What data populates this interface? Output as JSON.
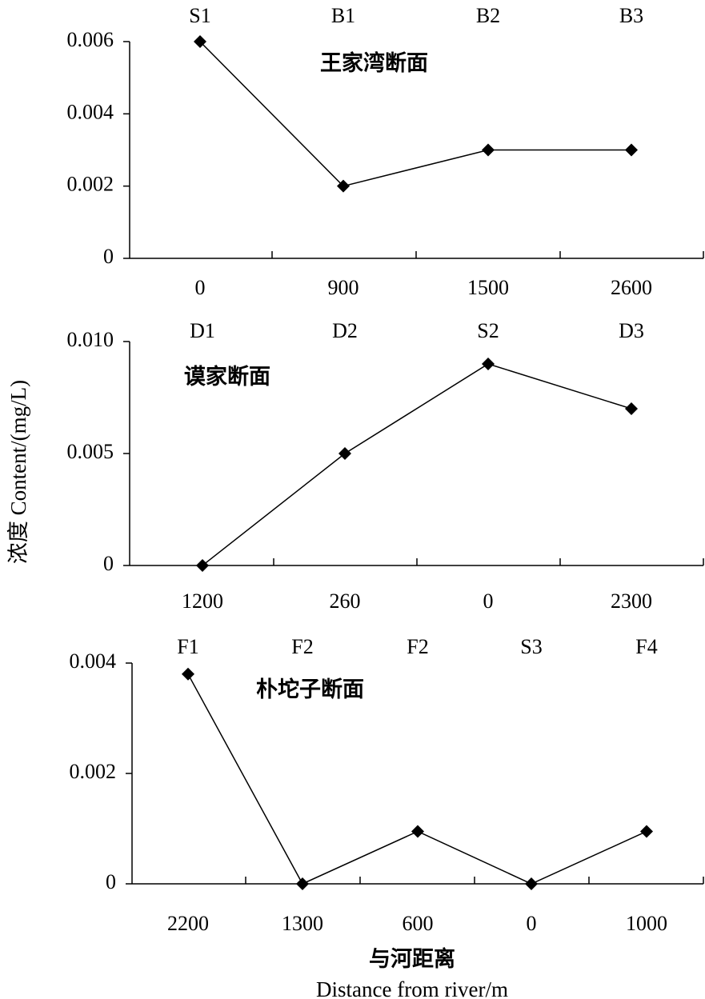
{
  "ylabel": "浓度 Content/(mg/L)",
  "xlabel_cn": "与河距离",
  "xlabel_en": "Distance from river/m",
  "chart_data": [
    {
      "type": "line",
      "title": "王家湾断面",
      "sites": [
        "S1",
        "B1",
        "B2",
        "B3"
      ],
      "categories": [
        "0",
        "900",
        "1500",
        "2600"
      ],
      "values": [
        0.006,
        0.002,
        0.003,
        0.003
      ],
      "yticks": [
        "0",
        "0.002",
        "0.004",
        "0.006"
      ],
      "ylim": [
        0,
        0.006
      ]
    },
    {
      "type": "line",
      "title": "谟家断面",
      "sites": [
        "D1",
        "D2",
        "S2",
        "D3"
      ],
      "categories": [
        "1200",
        "260",
        "0",
        "2300"
      ],
      "values": [
        0,
        0.005,
        0.009,
        0.007
      ],
      "yticks": [
        "0",
        "0.005",
        "0.010"
      ],
      "ylim": [
        0,
        0.01
      ]
    },
    {
      "type": "line",
      "title": "朴坨子断面",
      "sites": [
        "F1",
        "F2",
        "F2",
        "S3",
        "F4"
      ],
      "categories": [
        "2200",
        "1300",
        "600",
        "0",
        "1000"
      ],
      "values": [
        0.0038,
        0,
        0.00095,
        0,
        0.00095
      ],
      "yticks": [
        "0",
        "0.002",
        "0.004"
      ],
      "ylim": [
        0,
        0.004
      ]
    }
  ]
}
